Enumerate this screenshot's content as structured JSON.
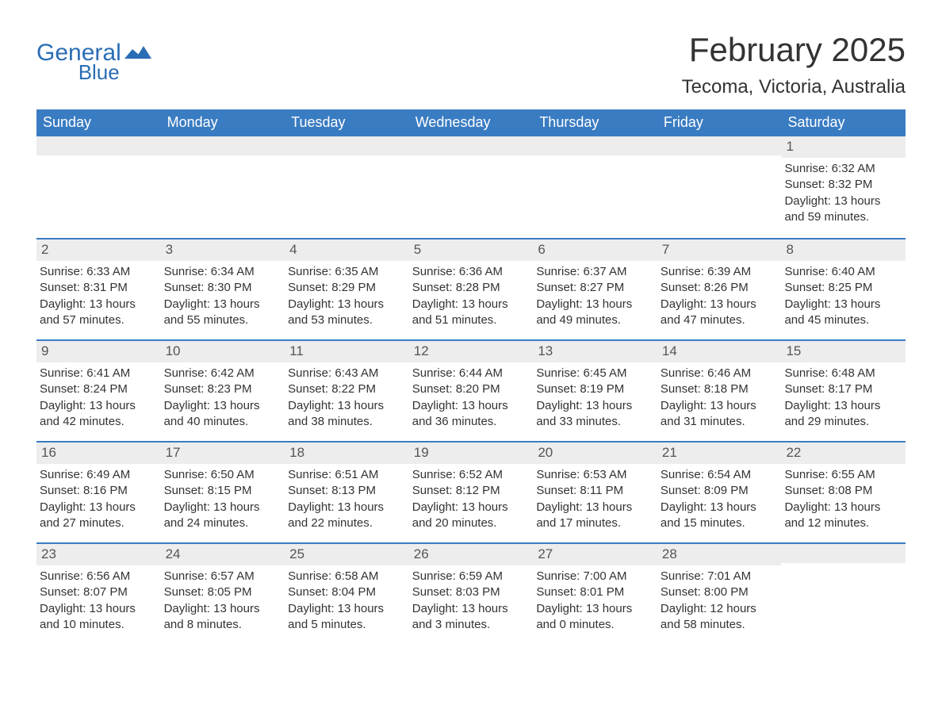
{
  "brand": {
    "word1": "General",
    "word2": "Blue",
    "color": "#2a6db5"
  },
  "title": {
    "month": "February 2025",
    "location": "Tecoma, Victoria, Australia"
  },
  "colors": {
    "header_bg": "#3a7cc2",
    "header_text": "#ffffff",
    "row_border": "#3a7cc2",
    "daynum_bg": "#ededed",
    "body_text": "#333333",
    "page_bg": "#ffffff"
  },
  "day_headers": [
    "Sunday",
    "Monday",
    "Tuesday",
    "Wednesday",
    "Thursday",
    "Friday",
    "Saturday"
  ],
  "typography": {
    "title_fontsize": 42,
    "location_fontsize": 24,
    "header_fontsize": 18,
    "body_fontsize": 15
  },
  "weeks": [
    [
      null,
      null,
      null,
      null,
      null,
      null,
      {
        "num": "1",
        "sunrise": "Sunrise: 6:32 AM",
        "sunset": "Sunset: 8:32 PM",
        "daylight1": "Daylight: 13 hours",
        "daylight2": "and 59 minutes."
      }
    ],
    [
      {
        "num": "2",
        "sunrise": "Sunrise: 6:33 AM",
        "sunset": "Sunset: 8:31 PM",
        "daylight1": "Daylight: 13 hours",
        "daylight2": "and 57 minutes."
      },
      {
        "num": "3",
        "sunrise": "Sunrise: 6:34 AM",
        "sunset": "Sunset: 8:30 PM",
        "daylight1": "Daylight: 13 hours",
        "daylight2": "and 55 minutes."
      },
      {
        "num": "4",
        "sunrise": "Sunrise: 6:35 AM",
        "sunset": "Sunset: 8:29 PM",
        "daylight1": "Daylight: 13 hours",
        "daylight2": "and 53 minutes."
      },
      {
        "num": "5",
        "sunrise": "Sunrise: 6:36 AM",
        "sunset": "Sunset: 8:28 PM",
        "daylight1": "Daylight: 13 hours",
        "daylight2": "and 51 minutes."
      },
      {
        "num": "6",
        "sunrise": "Sunrise: 6:37 AM",
        "sunset": "Sunset: 8:27 PM",
        "daylight1": "Daylight: 13 hours",
        "daylight2": "and 49 minutes."
      },
      {
        "num": "7",
        "sunrise": "Sunrise: 6:39 AM",
        "sunset": "Sunset: 8:26 PM",
        "daylight1": "Daylight: 13 hours",
        "daylight2": "and 47 minutes."
      },
      {
        "num": "8",
        "sunrise": "Sunrise: 6:40 AM",
        "sunset": "Sunset: 8:25 PM",
        "daylight1": "Daylight: 13 hours",
        "daylight2": "and 45 minutes."
      }
    ],
    [
      {
        "num": "9",
        "sunrise": "Sunrise: 6:41 AM",
        "sunset": "Sunset: 8:24 PM",
        "daylight1": "Daylight: 13 hours",
        "daylight2": "and 42 minutes."
      },
      {
        "num": "10",
        "sunrise": "Sunrise: 6:42 AM",
        "sunset": "Sunset: 8:23 PM",
        "daylight1": "Daylight: 13 hours",
        "daylight2": "and 40 minutes."
      },
      {
        "num": "11",
        "sunrise": "Sunrise: 6:43 AM",
        "sunset": "Sunset: 8:22 PM",
        "daylight1": "Daylight: 13 hours",
        "daylight2": "and 38 minutes."
      },
      {
        "num": "12",
        "sunrise": "Sunrise: 6:44 AM",
        "sunset": "Sunset: 8:20 PM",
        "daylight1": "Daylight: 13 hours",
        "daylight2": "and 36 minutes."
      },
      {
        "num": "13",
        "sunrise": "Sunrise: 6:45 AM",
        "sunset": "Sunset: 8:19 PM",
        "daylight1": "Daylight: 13 hours",
        "daylight2": "and 33 minutes."
      },
      {
        "num": "14",
        "sunrise": "Sunrise: 6:46 AM",
        "sunset": "Sunset: 8:18 PM",
        "daylight1": "Daylight: 13 hours",
        "daylight2": "and 31 minutes."
      },
      {
        "num": "15",
        "sunrise": "Sunrise: 6:48 AM",
        "sunset": "Sunset: 8:17 PM",
        "daylight1": "Daylight: 13 hours",
        "daylight2": "and 29 minutes."
      }
    ],
    [
      {
        "num": "16",
        "sunrise": "Sunrise: 6:49 AM",
        "sunset": "Sunset: 8:16 PM",
        "daylight1": "Daylight: 13 hours",
        "daylight2": "and 27 minutes."
      },
      {
        "num": "17",
        "sunrise": "Sunrise: 6:50 AM",
        "sunset": "Sunset: 8:15 PM",
        "daylight1": "Daylight: 13 hours",
        "daylight2": "and 24 minutes."
      },
      {
        "num": "18",
        "sunrise": "Sunrise: 6:51 AM",
        "sunset": "Sunset: 8:13 PM",
        "daylight1": "Daylight: 13 hours",
        "daylight2": "and 22 minutes."
      },
      {
        "num": "19",
        "sunrise": "Sunrise: 6:52 AM",
        "sunset": "Sunset: 8:12 PM",
        "daylight1": "Daylight: 13 hours",
        "daylight2": "and 20 minutes."
      },
      {
        "num": "20",
        "sunrise": "Sunrise: 6:53 AM",
        "sunset": "Sunset: 8:11 PM",
        "daylight1": "Daylight: 13 hours",
        "daylight2": "and 17 minutes."
      },
      {
        "num": "21",
        "sunrise": "Sunrise: 6:54 AM",
        "sunset": "Sunset: 8:09 PM",
        "daylight1": "Daylight: 13 hours",
        "daylight2": "and 15 minutes."
      },
      {
        "num": "22",
        "sunrise": "Sunrise: 6:55 AM",
        "sunset": "Sunset: 8:08 PM",
        "daylight1": "Daylight: 13 hours",
        "daylight2": "and 12 minutes."
      }
    ],
    [
      {
        "num": "23",
        "sunrise": "Sunrise: 6:56 AM",
        "sunset": "Sunset: 8:07 PM",
        "daylight1": "Daylight: 13 hours",
        "daylight2": "and 10 minutes."
      },
      {
        "num": "24",
        "sunrise": "Sunrise: 6:57 AM",
        "sunset": "Sunset: 8:05 PM",
        "daylight1": "Daylight: 13 hours",
        "daylight2": "and 8 minutes."
      },
      {
        "num": "25",
        "sunrise": "Sunrise: 6:58 AM",
        "sunset": "Sunset: 8:04 PM",
        "daylight1": "Daylight: 13 hours",
        "daylight2": "and 5 minutes."
      },
      {
        "num": "26",
        "sunrise": "Sunrise: 6:59 AM",
        "sunset": "Sunset: 8:03 PM",
        "daylight1": "Daylight: 13 hours",
        "daylight2": "and 3 minutes."
      },
      {
        "num": "27",
        "sunrise": "Sunrise: 7:00 AM",
        "sunset": "Sunset: 8:01 PM",
        "daylight1": "Daylight: 13 hours",
        "daylight2": "and 0 minutes."
      },
      {
        "num": "28",
        "sunrise": "Sunrise: 7:01 AM",
        "sunset": "Sunset: 8:00 PM",
        "daylight1": "Daylight: 12 hours",
        "daylight2": "and 58 minutes."
      },
      null
    ]
  ]
}
